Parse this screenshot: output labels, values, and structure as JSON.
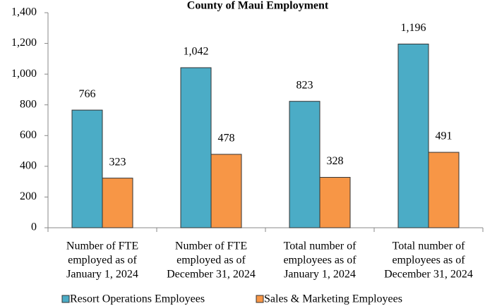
{
  "chart_data": {
    "type": "bar",
    "title": "County of Maui Employment",
    "categories": [
      [
        "Number of FTE",
        "employed as of",
        "January 1, 2024"
      ],
      [
        "Number of FTE",
        "employed as of",
        "December 31, 2024"
      ],
      [
        "Total number of",
        "employees as of",
        "January 1, 2024"
      ],
      [
        "Total number of",
        "employees as of",
        "December 31, 2024"
      ]
    ],
    "series": [
      {
        "name": "Resort Operations Employees",
        "color": "#4bacc6",
        "values": [
          766,
          1042,
          823,
          1196
        ],
        "value_labels": [
          "766",
          "1,042",
          "823",
          "1,196"
        ]
      },
      {
        "name": "Sales & Marketing Employees",
        "color": "#f79646",
        "values": [
          323,
          478,
          328,
          491
        ],
        "value_labels": [
          "323",
          "478",
          "328",
          "491"
        ]
      }
    ],
    "ylim": [
      0,
      1400
    ],
    "yticks": [
      0,
      200,
      400,
      600,
      800,
      {
        "value": 1000,
        "label": "1,000"
      },
      {
        "value": 1200,
        "label": "1,200"
      },
      {
        "value": 1400,
        "label": "1,400"
      }
    ],
    "legend": "bottom"
  }
}
